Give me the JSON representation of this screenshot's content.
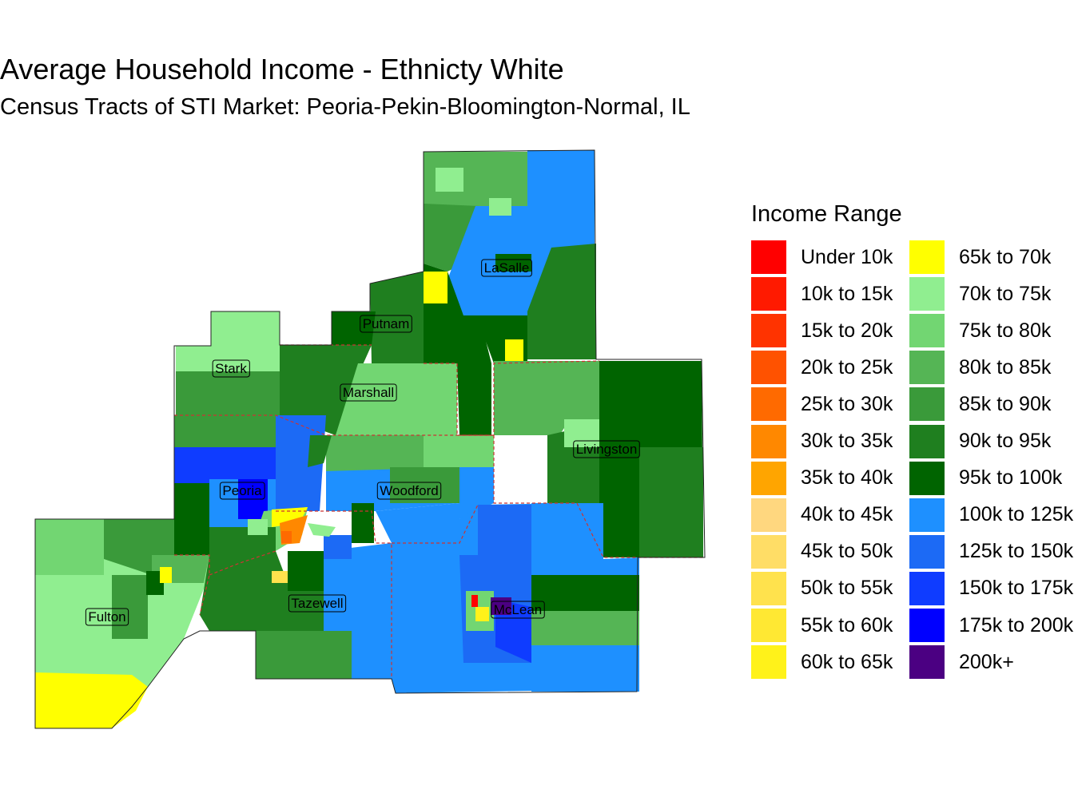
{
  "title": "Average Household Income - Ethnicty White",
  "subtitle": "Census Tracts of STI Market: Peoria-Pekin-Bloomington-Normal, IL",
  "legend": {
    "title": "Income Range",
    "items": [
      {
        "label": "Under 10k",
        "color": "#ff0000"
      },
      {
        "label": "10k to 15k",
        "color": "#ff1a00"
      },
      {
        "label": "15k to 20k",
        "color": "#ff3300"
      },
      {
        "label": "20k to 25k",
        "color": "#ff5200"
      },
      {
        "label": "25k to 30k",
        "color": "#ff6a00"
      },
      {
        "label": "30k to 35k",
        "color": "#ff8800"
      },
      {
        "label": "35k to 40k",
        "color": "#ffa500"
      },
      {
        "label": "40k to 45k",
        "color": "#ffd77f"
      },
      {
        "label": "45k to 50k",
        "color": "#ffdd66"
      },
      {
        "label": "50k to 55k",
        "color": "#ffe24d"
      },
      {
        "label": "55k to 60k",
        "color": "#ffe833"
      },
      {
        "label": "60k to 65k",
        "color": "#fff21a"
      },
      {
        "label": "65k to 70k",
        "color": "#ffff00"
      },
      {
        "label": "70k to 75k",
        "color": "#90ee90"
      },
      {
        "label": "75k to 80k",
        "color": "#72d672"
      },
      {
        "label": "80k to 85k",
        "color": "#55b555"
      },
      {
        "label": "85k to 90k",
        "color": "#3a9a3a"
      },
      {
        "label": "90k to 95k",
        "color": "#1f7f1f"
      },
      {
        "label": "95k to 100k",
        "color": "#006400"
      },
      {
        "label": "100k to 125k",
        "color": "#1e90ff"
      },
      {
        "label": "125k to 150k",
        "color": "#1c6af5"
      },
      {
        "label": "150k to 175k",
        "color": "#0f3cff"
      },
      {
        "label": "175k to 200k",
        "color": "#0000ff"
      },
      {
        "label": "200k+",
        "color": "#4b0082"
      }
    ]
  },
  "counties": [
    {
      "name": "LaSalle"
    },
    {
      "name": "Putnam"
    },
    {
      "name": "Stark"
    },
    {
      "name": "Marshall"
    },
    {
      "name": "Livingston"
    },
    {
      "name": "Peoria"
    },
    {
      "name": "Woodford"
    },
    {
      "name": "Fulton"
    },
    {
      "name": "Tazewell"
    },
    {
      "name": "McLean"
    }
  ]
}
